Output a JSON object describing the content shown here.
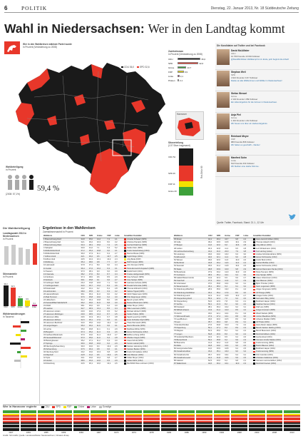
{
  "header": {
    "page": "6",
    "section": "POLITIK",
    "date": "Dienstag, 22. Januar 2013, Nr. 18  Süddeutsche Zeitung"
  },
  "headline": {
    "bold": "Wahl in Niedersachsen:",
    "rest": "Wer in den Landtag kommt"
  },
  "map": {
    "caption1": "Wer in den Wahlkreisen stärkste Partei wurde",
    "caption2": "in Prozent (Veränderung zu 2008)",
    "legend": [
      {
        "label": "CDU 36,0",
        "color": "#1a1a1a"
      },
      {
        "label": "SPD 32,6",
        "color": "#e8372a"
      }
    ],
    "turnout_title": "Wahlbeteiligung",
    "turnout_sub": "in Prozent",
    "turnout_value": "59,4 %",
    "turnout_prev": "(2008: 57,1%)",
    "inset_label": "Hannover",
    "colors": {
      "cdu": "#1a1a1a",
      "spd": "#e8372a",
      "bg": "#e0e0e0"
    }
  },
  "seats": {
    "title": "Sitzverteilung",
    "sub": "(137 Sitze insgesamt)",
    "items": [
      {
        "label": "CDU 54",
        "color": "#1a1a1a"
      },
      {
        "label": "SPD 49",
        "color": "#e8372a"
      },
      {
        "label": "FDP 14",
        "color": "#f3e000"
      },
      {
        "label": "Grüne 20",
        "color": "#3da13a"
      }
    ],
    "majority_label": "Rot-Grün 69"
  },
  "second_vote": {
    "title": "Zweitstimmen",
    "sub": "in Prozent (Veränderung zu 2008)",
    "rows": [
      {
        "label": "CDU",
        "value": "36,0",
        "color": "#1a1a1a",
        "pct": 36
      },
      {
        "label": "SPD",
        "value": "32,6",
        "color": "#e8372a",
        "pct": 32.6
      },
      {
        "label": "Grüne",
        "value": "13,7",
        "color": "#3da13a",
        "pct": 13.7
      },
      {
        "label": "FDP",
        "value": "9,9",
        "color": "#f3e000",
        "pct": 9.9
      },
      {
        "label": "Linke",
        "value": "3,1",
        "color": "#b01e6b",
        "pct": 3.1
      },
      {
        "label": "Piraten",
        "value": "2,1",
        "color": "#f39200",
        "pct": 2.1
      }
    ]
  },
  "candidates": {
    "title": "Die Kandidaten auf Twitter und bei Facebook",
    "people": [
      {
        "name": "David McAllister",
        "party": "CDU",
        "stats": "12 760  Freunde  13 004  Follower",
        "quote": "@DavidMcAllister Wahlkampf ist zu Ende, jetzt beginnt die Arbeit!"
      },
      {
        "name": "Stephan Weil",
        "party": "SPD",
        "stats": "4 921  Freunde  3 217  Follower",
        "quote": "Danke an alle Wählerinnen und Wähler in Niedersachsen!"
      },
      {
        "name": "Stefan Wenzel",
        "party": "Grüne",
        "stats": "2 104  Freunde  1 882  Follower",
        "quote": "Ein tolles Ergebnis für die Grünen in Niedersachsen."
      },
      {
        "name": "Anja Piel",
        "party": "Grüne",
        "stats": "1 410  Freunde  1 212  Follower",
        "quote": "Wir freuen uns über ein starkes Ergebnis."
      },
      {
        "name": "Reinhard Meyer",
        "party": "FDP",
        "stats": "980  Freunde  806  Follower",
        "quote": "Wir haben es geschafft – Danke!"
      },
      {
        "name": "Manfred Sohn",
        "party": "Linke",
        "stats": "612  Freunde  431  Follower",
        "quote": "Wir bleiben eine starke Stimme."
      }
    ],
    "source": "Quelle: Twitter, Facebook; Stand: 21.1., 12 Uhr"
  },
  "left_panels": {
    "title": "Die Wahlbeteiligung",
    "p1_title": "Landtagswahl 2013 in Niedersachsen",
    "p1_sub": "in Prozent",
    "p2_title": "Stimmanteile",
    "p2_sub": "in Prozent",
    "p3_title": "Wählerwanderungen",
    "p3_sub": "in Tausend",
    "bar_labels": [
      "CDU",
      "SPD",
      "Grüne",
      "FDP",
      "Linke"
    ],
    "bar_values": [
      "36,0",
      "32,6",
      "13,7",
      "9,9",
      "3,1"
    ]
  },
  "results": {
    "title": "Ergebnisse in den Wahlkreisen",
    "sub": "Zweitstimmenanteil in Prozent",
    "col_heads": [
      "Wahlkreis",
      "CDU",
      "SPD",
      "Grüne",
      "FDP",
      "Linke",
      "Gewählter Kandidat"
    ],
    "left_rows": [
      [
        "1 Braunschweig-Nord",
        "34,8",
        "35,0",
        "14,2",
        "7,4",
        "4,1",
        "Annette Schwarz (SPD)"
      ],
      [
        "2 Braunschweig-Süd",
        "32,1",
        "36,2",
        "16,3",
        "8,0",
        "3,2",
        "Christos Pantazis (SPD)"
      ],
      [
        "3 Braunschweig-West",
        "30,4",
        "38,1",
        "15,0",
        "7,2",
        "4,5",
        "Gerhard Dalchow (SPD)"
      ],
      [
        "4 Salzgitter",
        "30,9",
        "44,2",
        "7,1",
        "6,3",
        "5,2",
        "Stefan Klein (SPD)"
      ],
      [
        "5 Wolfenbüttel-Nord",
        "37,2",
        "35,4",
        "10,8",
        "9,0",
        "3,1",
        "Frank Oesterhelweg (CDU)"
      ],
      [
        "6 Wolfenbüttel-Süd",
        "36,0",
        "37,3",
        "11,1",
        "9,4",
        "2,7",
        "Marcus Bosse (SPD)"
      ],
      [
        "7 Gifhorn-Nord",
        "42,1",
        "30,2",
        "9,6",
        "10,7",
        "2,5",
        "Ingrid Klopp (CDU)"
      ],
      [
        "8 Gifhorn-Süd",
        "40,5",
        "32,4",
        "10,1",
        "10,2",
        "2,4",
        "Jörg Bode (FDP)"
      ],
      [
        "9 Wolfsburg",
        "35,4",
        "38,6",
        "9,8",
        "7,7",
        "3,7",
        "Ralf Krümpel (SPD)"
      ],
      [
        "10 Helmstedt",
        "37,8",
        "37,1",
        "8,9",
        "9,0",
        "3,4",
        "Jörn Domeier (SPD)"
      ],
      [
        "11 Goslar",
        "36,4",
        "37,2",
        "10,2",
        "9,3",
        "3,1",
        "Petra Emmerich-Kopatsch (SPD)"
      ],
      [
        "12 Seesen",
        "37,0",
        "38,1",
        "9,0",
        "9,0",
        "3,0",
        "Rudolf Götz (CDU)"
      ],
      [
        "13 Osterode",
        "38,2",
        "37,0",
        "8,9",
        "8,7",
        "3,4",
        "Frauke Heiligenstadt (SPD)"
      ],
      [
        "14 Northeim",
        "37,4",
        "38,0",
        "9,6",
        "8,5",
        "2,9",
        "Uwe Schwarz (SPD)"
      ],
      [
        "15 Einbeck",
        "39,1",
        "35,8",
        "9,1",
        "9,6",
        "2,7",
        "Uwe Santjer (SPD)"
      ],
      [
        "16 Göttingen-Stadt",
        "26,3",
        "33,8",
        "24,5",
        "7,1",
        "5,0",
        "Gabriele Andretta (SPD)"
      ],
      [
        "17 Göttingen/Harz",
        "34,6",
        "36,7",
        "13,2",
        "8,4",
        "3,6",
        "Ronald Schminke (SPD)"
      ],
      [
        "18 Duderstadt",
        "43,2",
        "33,1",
        "9,2",
        "8,4",
        "2,8",
        "Thomas Ehbrecht (CDU)"
      ],
      [
        "19 Holzminden",
        "38,9",
        "35,5",
        "9,3",
        "9,3",
        "3,2",
        "Sabine Tippelt (SPD)"
      ],
      [
        "20 Hameln/Rinteln",
        "36,1",
        "36,4",
        "11,0",
        "9,0",
        "3,2",
        "Ulrich Watermann (SPD)"
      ],
      [
        "21 Bad Pyrmont",
        "37,6",
        "35,8",
        "10,6",
        "9,2",
        "3,0",
        "Otto Deppmeyer (CDU)"
      ],
      [
        "22 Hildesheim",
        "31,2",
        "36,4",
        "16,8",
        "8,0",
        "3,8",
        "Bernd Lynack (SPD)"
      ],
      [
        "23 Sarstedt/Bad Salzdetfurth",
        "36,2",
        "36,6",
        "11,9",
        "8,8",
        "3,0",
        "Markus Brinkmann (SPD)"
      ],
      [
        "24 Alfeld",
        "38,1",
        "36,0",
        "9,9",
        "9,2",
        "3,0",
        "Volker Meyer (CDU)"
      ],
      [
        "25 Laatzen",
        "32,7",
        "38,3",
        "13,1",
        "8,6",
        "3,4",
        "Silke Lesemann (SPD)"
      ],
      [
        "26 Hannover-Linden",
        "20,9",
        "34,6",
        "27,4",
        "6,5",
        "6,2",
        "Michael Höntsch (SPD)"
      ],
      [
        "27 Hannover-Ricklingen",
        "29,9",
        "38,5",
        "14,4",
        "8,7",
        "4,5",
        "Stefan Politze (SPD)"
      ],
      [
        "28 Hannover-Mitte",
        "29,6",
        "33,3",
        "20,1",
        "9,7",
        "3,8",
        "Sigrid Leuschner (SPD)"
      ],
      [
        "29 Hannover-Döhren",
        "31,5",
        "35,1",
        "17,6",
        "9,6",
        "3,1",
        "Doris Schröder-Köpf (SPD)"
      ],
      [
        "30 Hannover-Buchholz",
        "33,0",
        "35,6",
        "14,0",
        "10,1",
        "3,2",
        "Thela Wernstedt (SPD)"
      ],
      [
        "31 Langenhagen",
        "35,3",
        "36,2",
        "11,6",
        "9,6",
        "3,1",
        "Marco Brunotte (SPD)"
      ],
      [
        "32 Lehrte",
        "35,9",
        "36,8",
        "11,1",
        "9,1",
        "2,9",
        "Matthias Möhle (SPD)"
      ],
      [
        "33 Burgdorf",
        "37,4",
        "35,2",
        "11,3",
        "9,3",
        "2,6",
        "Heiner Schönecke (CDU)"
      ],
      [
        "34 Garbsen/Wedemark",
        "37,9",
        "34,0",
        "11,4",
        "10,0",
        "2,7",
        "Editha Lorberg (CDU)"
      ],
      [
        "35 Neustadt/Wunstorf",
        "37,0",
        "35,6",
        "11,0",
        "9,4",
        "2,8",
        "Wiebke Osigus (SPD)"
      ],
      [
        "36 Barsinghausen",
        "35,2",
        "37,1",
        "11,2",
        "9,3",
        "3,0",
        "Claus Schult (SPD)"
      ],
      [
        "37 Springe",
        "36,6",
        "36,8",
        "10,6",
        "9,2",
        "2,9",
        "Kerstin Liebelt (SPD)"
      ],
      [
        "38 Nienburg/Schaumburg",
        "39,3",
        "34,0",
        "9,4",
        "10,2",
        "2,9",
        "Karsten Heineking (CDU)"
      ],
      [
        "39 Schaumburg",
        "37,5",
        "36,4",
        "9,8",
        "9,6",
        "3,1",
        "Karsten Becker (SPD)"
      ],
      [
        "40 Nienburg-Nord",
        "40,2",
        "33,0",
        "10,3",
        "9,8",
        "2,8",
        "Frank Schmädeke (CDU)"
      ],
      [
        "41 Diepholz",
        "42,8",
        "31,2",
        "9,6",
        "10,4",
        "2,5",
        "Axel Miesner (CDU)"
      ],
      [
        "42 Syke",
        "40,1",
        "33,6",
        "10,2",
        "9,8",
        "2,7",
        "Volker Meyer (CDU)"
      ],
      [
        "43 Verden",
        "38,6",
        "33,4",
        "12,0",
        "9,5",
        "2,9",
        "Adrian Mohr (CDU)"
      ],
      [
        "44 Rotenburg",
        "43,6",
        "30,1",
        "10,0",
        "10,1",
        "2,6",
        "Mechthild Ross-Luttmann (CDU)"
      ]
    ],
    "right_rows": [
      [
        "45 Zeven",
        "44,1",
        "29,4",
        "10,7",
        "9,8",
        "2,4",
        "Hans-Heinrich Ehlen (CDU)"
      ],
      [
        "46 Celle",
        "39,2",
        "33,5",
        "10,8",
        "10,1",
        "2,9",
        "Thomas Adasch (CDU)"
      ],
      [
        "47 Bergen",
        "41,6",
        "32,0",
        "9,6",
        "10,6",
        "2,8",
        "Jörg Hillmer (CDU)"
      ],
      [
        "48 Uelzen",
        "40,3",
        "32,8",
        "11,2",
        "9,5",
        "2,8",
        "Lutz Winkelmann (CDU)"
      ],
      [
        "49 Lüchow-Dannenberg",
        "34,2",
        "31,0",
        "20,0",
        "7,9",
        "3,8",
        "Kurt Herzog (Linke)"
      ],
      [
        "50 Lüneburg",
        "33,6",
        "34,0",
        "16,3",
        "9,3",
        "3,0",
        "Andrea Schröder-Ehlers (SPD)"
      ],
      [
        "51 Elbmarsch",
        "40,6",
        "32,1",
        "11,4",
        "9,6",
        "2,8",
        "Heiner Schönecke (CDU)"
      ],
      [
        "52 Winsen",
        "39,6",
        "32,6",
        "11,6",
        "10,0",
        "2,6",
        "André Bock (CDU)"
      ],
      [
        "53 Buchholz",
        "40,8",
        "29,4",
        "12,6",
        "11,0",
        "2,4",
        "Norbert Böhlke (CDU)"
      ],
      [
        "54 Seevetal",
        "39,5",
        "31,2",
        "12,8",
        "10,4",
        "2,5",
        "Heiner Schönecke (CDU)"
      ],
      [
        "55 Stade",
        "38,8",
        "33,9",
        "10,9",
        "9,8",
        "2,9",
        "Helmut Dammann-Tamke (CDU)"
      ],
      [
        "56 Buxtehude",
        "37,9",
        "33,2",
        "12,9",
        "10,3",
        "2,6",
        "Petra Tiemann (SPD)"
      ],
      [
        "57 Cuxhaven",
        "38,3",
        "35,1",
        "10,1",
        "9,4",
        "3,0",
        "Uwe Santjer (SPD)"
      ],
      [
        "58 Hadeln/Wesermünde",
        "41,9",
        "32,3",
        "9,5",
        "9,9",
        "2,7",
        "Claus Johannssen (CDU)"
      ],
      [
        "59 Osterholz",
        "37,3",
        "34,4",
        "11,9",
        "9,7",
        "2,9",
        "Axel Miesner (CDU)"
      ],
      [
        "60 Unterweser",
        "37,0",
        "35,8",
        "10,4",
        "9,6",
        "3,1",
        "Björn Thümler (CDU)"
      ],
      [
        "61 Wesermarsch",
        "36,1",
        "38,2",
        "9,4",
        "9,1",
        "3,2",
        "Karin Logemann (SPD)"
      ],
      [
        "62 Oldenburg-Mitte/Süd",
        "28,3",
        "35,6",
        "19,3",
        "8,1",
        "4,4",
        "Jürgen Krogmann (SPD)"
      ],
      [
        "63 Oldenburg-Nord/West",
        "30,2",
        "35,2",
        "17,6",
        "8,6",
        "4,0",
        "Ulf Prange (SPD)"
      ],
      [
        "64 Oldenburg-Land",
        "42,3",
        "31,4",
        "10,8",
        "10,2",
        "2,7",
        "Ansgar Focke (CDU)"
      ],
      [
        "65 Cloppenburg-Nord",
        "55,3",
        "22,4",
        "7,6",
        "9,4",
        "2,0",
        "Karl-Heinz Bley (CDU)"
      ],
      [
        "66 Cloppenburg",
        "54,6",
        "22,9",
        "7,8",
        "9,3",
        "2,1",
        "Burkhard Jasper (CDU)"
      ],
      [
        "67 Vechta",
        "56,1",
        "21,3",
        "8,2",
        "9,0",
        "2,0",
        "Stephan Siemer (CDU)"
      ],
      [
        "68 Friesland",
        "38,1",
        "36,4",
        "10,2",
        "9,2",
        "3,1",
        "Olaf Lies (SPD)"
      ],
      [
        "69 Wilhelmshaven",
        "31,9",
        "41,2",
        "10,0",
        "8,5",
        "4,2",
        "Holger Ansmann (SPD)"
      ],
      [
        "70 Aurich",
        "33,0",
        "42,1",
        "10,4",
        "8,1",
        "3,3",
        "Wiard Siebels (SPD)"
      ],
      [
        "71 Wittmund/Inseln",
        "37,3",
        "37,4",
        "10,1",
        "8,8",
        "3,0",
        "Jochen Beekhuis (SPD)"
      ],
      [
        "72 Leer/Borkum",
        "33,6",
        "40,6",
        "10,5",
        "8,6",
        "3,4",
        "Johanne Modder (SPD)"
      ],
      [
        "73 Leer",
        "35,7",
        "39,3",
        "9,8",
        "8,9",
        "3,1",
        "Ulf Thiele (CDU)"
      ],
      [
        "74 Emden/Norden",
        "27,6",
        "46,8",
        "10,0",
        "7,3",
        "4,2",
        "Hans-Dieter Haase (SPD)"
      ],
      [
        "75 Papenburg",
        "50,1",
        "27,1",
        "8,6",
        "8,9",
        "2,3",
        "Bernd-Carsten Hiebing (CDU)"
      ],
      [
        "76 Meppen",
        "52,3",
        "25,0",
        "8,4",
        "9,2",
        "2,2",
        "Bernd Busemann (CDU)"
      ],
      [
        "77 Lingen",
        "50,8",
        "26,9",
        "8,6",
        "9,0",
        "2,2",
        "Reinhold Hilbers (CDU)"
      ],
      [
        "78 Grafschaft Bentheim",
        "44,3",
        "32,1",
        "9,5",
        "9,4",
        "2,6",
        "Gerda Hövel (CDU)"
      ],
      [
        "79 Bersenbrück",
        "50,2",
        "25,8",
        "9,2",
        "9,9",
        "2,3",
        "Clemens Große Macke (CDU)"
      ],
      [
        "80 Bramsche",
        "41,4",
        "32,2",
        "11,6",
        "9,8",
        "2,6",
        "Frank Henning (SPD)"
      ],
      [
        "81 Melle",
        "40,8",
        "34,0",
        "10,4",
        "9,6",
        "2,6",
        "Martin Bäumer (CDU)"
      ],
      [
        "82 Georgsmarienhütte",
        "41,0",
        "33,9",
        "10,8",
        "9,4",
        "2,5",
        "Burkhard Jasper (CDU)"
      ],
      [
        "83 Osnabrück-West",
        "33,4",
        "35,1",
        "16,0",
        "9,0",
        "3,4",
        "Frank Henning (SPD)"
      ],
      [
        "84 Osnabrück-Ost",
        "35,7",
        "32,6",
        "16,4",
        "9,4",
        "3,1",
        "Fritz Güntzler (CDU)"
      ],
      [
        "85 Osnabrück-Land",
        "42,4",
        "31,8",
        "10,6",
        "9,9",
        "2,5",
        "Christian Calderone (CDU)"
      ],
      [
        "86 Hasetal",
        "52,5",
        "23,6",
        "9,2",
        "9,8",
        "2,1",
        "Clemens Lammerskitten (CDU)"
      ],
      [
        "87 Wallenhorst",
        "44,6",
        "30,2",
        "10,1",
        "10,0",
        "2,3",
        "Reinhold Coenen (CDU)"
      ]
    ]
  },
  "bottom": {
    "title": "Wer in Hannover regierte",
    "legend": [
      {
        "label": "CDU",
        "color": "#1a1a1a"
      },
      {
        "label": "SPD",
        "color": "#e8372a"
      },
      {
        "label": "FDP",
        "color": "#f3e000"
      },
      {
        "label": "Grüne",
        "color": "#3da13a"
      },
      {
        "label": "Linke",
        "color": "#b01e6b"
      },
      {
        "label": "Sonstige",
        "color": "#bdbdbd"
      }
    ],
    "years": [
      "1947",
      "1951",
      "1955",
      "1959",
      "1963",
      "1967",
      "1970",
      "1974",
      "1978",
      "1982",
      "1986",
      "1990",
      "1994",
      "1998",
      "2003",
      "2008",
      "2013"
    ],
    "note": "Grafik: SZ-Grafik; Quelle: Landeswahlleiter Niedersachsen; Infratest dimap"
  }
}
